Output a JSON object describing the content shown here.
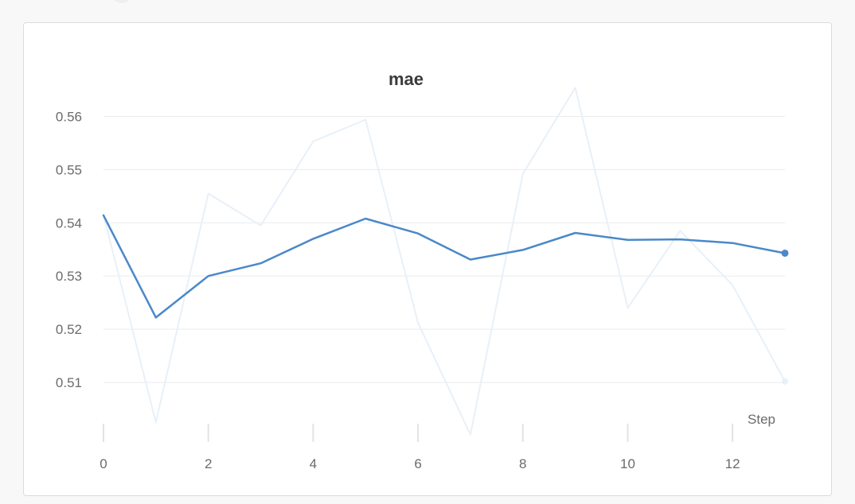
{
  "chart_data": {
    "type": "line",
    "title": "mae",
    "xlabel": "Step",
    "ylabel": "",
    "xlim": [
      0,
      13
    ],
    "ylim": [
      0.5,
      0.565
    ],
    "xticks": [
      0,
      2,
      4,
      6,
      8,
      10,
      12
    ],
    "yticks": [
      0.51,
      0.52,
      0.53,
      0.54,
      0.55,
      0.56
    ],
    "ytick_labels": [
      "0.51",
      "0.52",
      "0.53",
      "0.54",
      "0.55",
      "0.56"
    ],
    "grid": true,
    "x": [
      0,
      1,
      2,
      3,
      4,
      5,
      6,
      7,
      8,
      9,
      10,
      11,
      12,
      13
    ],
    "series": [
      {
        "role": "raw",
        "color": "#e8f0f8",
        "values": [
          0.5415,
          0.5025,
          0.5455,
          0.5395,
          0.5553,
          0.5594,
          0.5212,
          0.5002,
          0.5492,
          0.5654,
          0.524,
          0.5385,
          0.5283,
          0.5102
        ]
      },
      {
        "role": "smoothed",
        "color": "#4a88c9",
        "values": [
          0.5414,
          0.5222,
          0.53,
          0.5324,
          0.537,
          0.5408,
          0.538,
          0.5331,
          0.5349,
          0.5381,
          0.5368,
          0.5369,
          0.5362,
          0.5343
        ]
      }
    ]
  }
}
